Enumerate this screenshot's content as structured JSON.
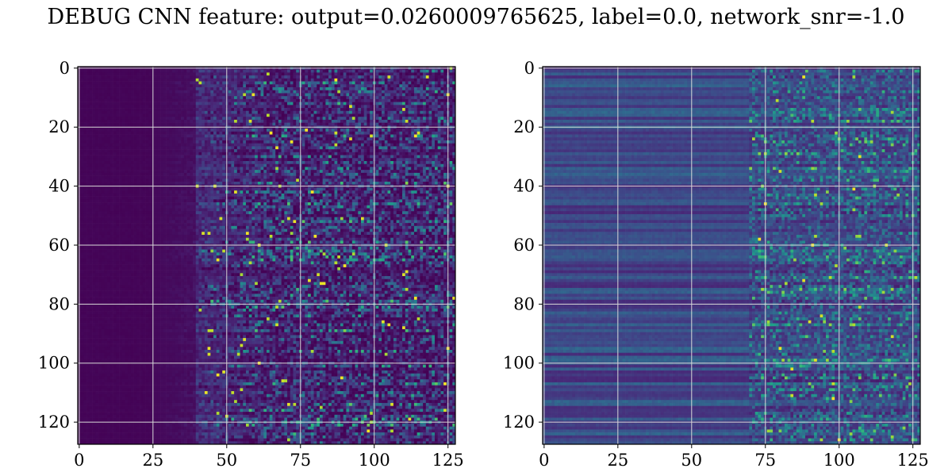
{
  "title": "DEBUG CNN feature: output=0.0260009765625, label=0.0, network_snr=-1.0",
  "chart_data": [
    {
      "type": "heatmap",
      "colormap": "viridis",
      "x_ticks": [
        0,
        25,
        50,
        75,
        100,
        125
      ],
      "y_ticks": [
        0,
        20,
        40,
        60,
        80,
        100,
        120
      ],
      "xlim": [
        0,
        127
      ],
      "ylim": [
        127,
        0
      ],
      "grid": true,
      "rows": 128,
      "cols": 128,
      "description_values": {
        "dark_region_cols": [
          0,
          40
        ],
        "active_region_cols": [
          40,
          127
        ]
      }
    },
    {
      "type": "heatmap",
      "colormap": "viridis",
      "x_ticks": [
        0,
        25,
        50,
        75,
        100,
        125
      ],
      "y_ticks": [
        0,
        20,
        40,
        60,
        80,
        100,
        120
      ],
      "xlim": [
        0,
        127
      ],
      "ylim": [
        127,
        0
      ],
      "grid": true,
      "rows": 128,
      "cols": 128,
      "description_values": {
        "dark_region_cols": [
          0,
          70
        ],
        "active_region_cols": [
          70,
          127
        ]
      }
    }
  ]
}
